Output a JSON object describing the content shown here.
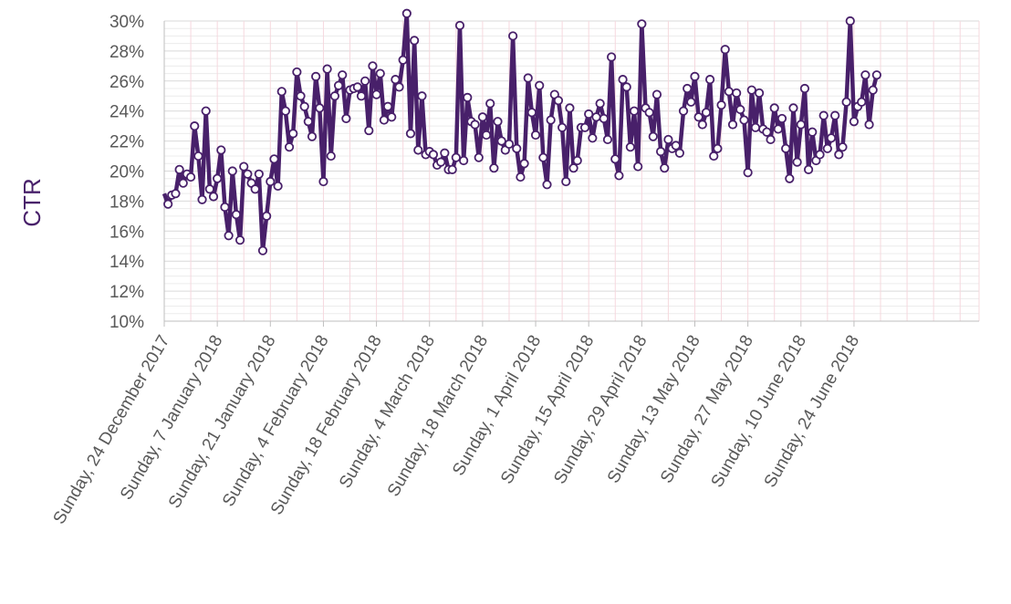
{
  "chart_data": {
    "type": "line",
    "ylabel": "CTR",
    "xlabel": "",
    "title": "",
    "ylim": [
      0.1,
      0.3
    ],
    "y_tick_format": "percent",
    "y_ticks": [
      0.1,
      0.12,
      0.14,
      0.16,
      0.18,
      0.2,
      0.22,
      0.24,
      0.26,
      0.28,
      0.3
    ],
    "y_tick_labels": [
      "10%",
      "12%",
      "14%",
      "16%",
      "18%",
      "20%",
      "22%",
      "24%",
      "26%",
      "28%",
      "30%"
    ],
    "x_tick_labels": [
      "Sunday, 24 December 2017",
      "Sunday, 7 January 2018",
      "Sunday, 21 January 2018",
      "Sunday, 4 February 2018",
      "Sunday, 18 February 2018",
      "Sunday, 4 March 2018",
      "Sunday, 18 March 2018",
      "Sunday, 1 April 2018",
      "Sunday, 15 April 2018",
      "Sunday, 29 April 2018",
      "Sunday, 13 May 2018",
      "Sunday, 27 May 2018",
      "Sunday, 10 June 2018",
      "Sunday, 24 June 2018"
    ],
    "x_start": "2017-12-24",
    "x_end": "2018-07-27",
    "grid": true,
    "legend": "none",
    "line_color": "#48206a",
    "marker_fill": "#ffffff",
    "series": [
      {
        "values": [
          0.185,
          0.178,
          0.184,
          0.185,
          0.201,
          0.192,
          0.198,
          0.196,
          0.23,
          0.21,
          0.181,
          0.24,
          0.188,
          0.183,
          0.195,
          0.214,
          0.176,
          0.157,
          0.2,
          0.171,
          0.154,
          0.203,
          0.198,
          0.192,
          0.188,
          0.198,
          0.147,
          0.17,
          0.193,
          0.208,
          0.19,
          0.253,
          0.24,
          0.216,
          0.225,
          0.266,
          0.25,
          0.243,
          0.233,
          0.223,
          0.263,
          0.242,
          0.193,
          0.268,
          0.21,
          0.25,
          0.257,
          0.264,
          0.235,
          0.254,
          0.255,
          0.256,
          0.25,
          0.26,
          0.227,
          0.27,
          0.251,
          0.265,
          0.234,
          0.243,
          0.236,
          0.261,
          0.256,
          0.274,
          0.305,
          0.225,
          0.287,
          0.214,
          0.25,
          0.211,
          0.213,
          0.211,
          0.204,
          0.206,
          0.212,
          0.201,
          0.201,
          0.209,
          0.297,
          0.207,
          0.249,
          0.233,
          0.231,
          0.209,
          0.236,
          0.224,
          0.245,
          0.202,
          0.233,
          0.22,
          0.214,
          0.218,
          0.29,
          0.215,
          0.196,
          0.205,
          0.262,
          0.239,
          0.224,
          0.257,
          0.209,
          0.191,
          0.234,
          0.251,
          0.247,
          0.229,
          0.193,
          0.242,
          0.202,
          0.207,
          0.229,
          0.229,
          0.238,
          0.222,
          0.236,
          0.245,
          0.235,
          0.221,
          0.276,
          0.208,
          0.197,
          0.261,
          0.256,
          0.216,
          0.24,
          0.203,
          0.298,
          0.242,
          0.239,
          0.223,
          0.251,
          0.213,
          0.202,
          0.221,
          0.215,
          0.217,
          0.212,
          0.24,
          0.255,
          0.246,
          0.263,
          0.236,
          0.231,
          0.239,
          0.261,
          0.21,
          0.215,
          0.244,
          0.281,
          0.253,
          0.231,
          0.252,
          0.241,
          0.234,
          0.199,
          0.254,
          0.229,
          0.252,
          0.228,
          0.226,
          0.221,
          0.242,
          0.228,
          0.235,
          0.215,
          0.195,
          0.242,
          0.206,
          0.231,
          0.255,
          0.201,
          0.226,
          0.207,
          0.211,
          0.237,
          0.215,
          0.222,
          0.237,
          0.211,
          0.216,
          0.246,
          0.3,
          0.233,
          0.243,
          0.246,
          0.264,
          0.231,
          0.254,
          0.264
        ]
      }
    ]
  }
}
